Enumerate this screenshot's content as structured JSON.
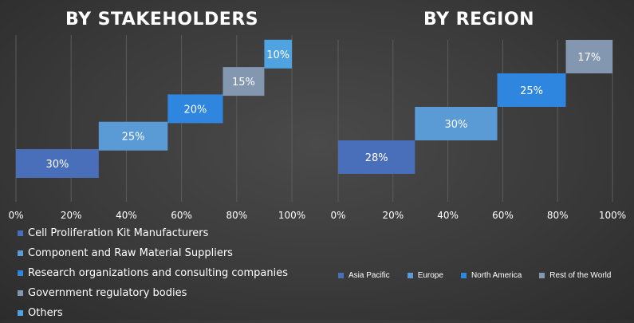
{
  "chart_data": [
    {
      "type": "bar",
      "title": "BY STAKEHOLDERS",
      "orientation": "horizontal",
      "stacked": true,
      "xlim": [
        0,
        100
      ],
      "xticks": [
        "0%",
        "20%",
        "40%",
        "60%",
        "80%",
        "100%"
      ],
      "grid": true,
      "legend_position": "bottom-left",
      "series": [
        {
          "name": "Cell Proliferation Kit Manufacturers",
          "value": 30,
          "label": "30%",
          "color": "#4a6fba"
        },
        {
          "name": "Component and Raw Material Suppliers",
          "value": 25,
          "label": "25%",
          "color": "#5b9bd5"
        },
        {
          "name": "Research organizations and consulting companies",
          "value": 20,
          "label": "20%",
          "color": "#2e86de"
        },
        {
          "name": "Government regulatory bodies",
          "value": 15,
          "label": "15%",
          "color": "#8497b0"
        },
        {
          "name": "Others",
          "value": 10,
          "label": "10%",
          "color": "#4fa3e0"
        }
      ]
    },
    {
      "type": "bar",
      "title": "BY REGION",
      "orientation": "horizontal",
      "stacked": true,
      "xlim": [
        0,
        100
      ],
      "xticks": [
        "0%",
        "20%",
        "40%",
        "60%",
        "80%",
        "100%"
      ],
      "grid": true,
      "legend_position": "bottom",
      "series": [
        {
          "name": "Asia Pacific",
          "value": 28,
          "label": "28%",
          "color": "#4a6fba"
        },
        {
          "name": "Europe",
          "value": 30,
          "label": "30%",
          "color": "#5b9bd5"
        },
        {
          "name": "North America",
          "value": 25,
          "label": "25%",
          "color": "#2e86de"
        },
        {
          "name": "Rest of the World",
          "value": 17,
          "label": "17%",
          "color": "#8497b0"
        }
      ]
    }
  ]
}
